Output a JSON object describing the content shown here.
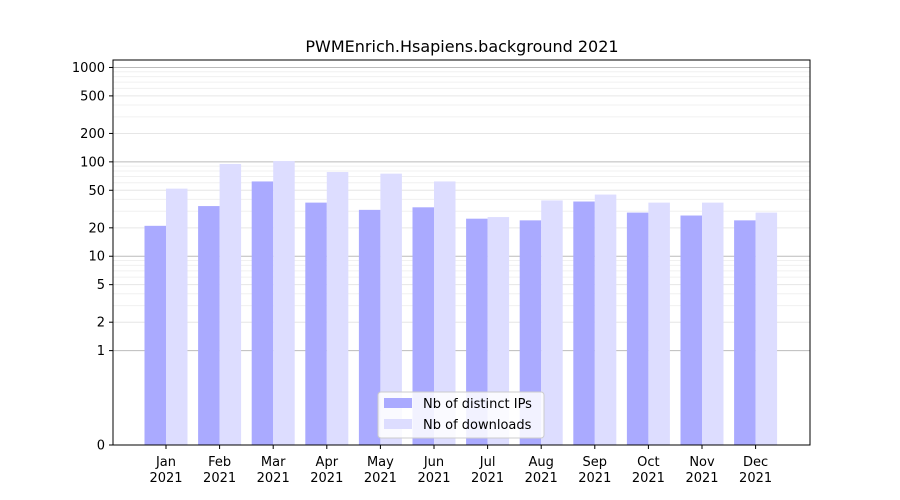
{
  "chart_data": {
    "type": "bar",
    "title": "PWMEnrich.Hsapiens.background 2021",
    "categories": [
      [
        "Jan",
        "2021"
      ],
      [
        "Feb",
        "2021"
      ],
      [
        "Mar",
        "2021"
      ],
      [
        "Apr",
        "2021"
      ],
      [
        "May",
        "2021"
      ],
      [
        "Jun",
        "2021"
      ],
      [
        "Jul",
        "2021"
      ],
      [
        "Aug",
        "2021"
      ],
      [
        "Sep",
        "2021"
      ],
      [
        "Oct",
        "2021"
      ],
      [
        "Nov",
        "2021"
      ],
      [
        "Dec",
        "2021"
      ]
    ],
    "series": [
      {
        "name": "Nb of distinct IPs",
        "color": "#aaaaff",
        "values": [
          21,
          34,
          62,
          37,
          31,
          33,
          25,
          24,
          38,
          29,
          27,
          24
        ]
      },
      {
        "name": "Nb of downloads",
        "color": "#ddddff",
        "values": [
          52,
          95,
          102,
          78,
          75,
          62,
          26,
          39,
          45,
          37,
          37,
          29
        ]
      }
    ],
    "y_scale": "symlog",
    "yticks": [
      0,
      1,
      2,
      5,
      10,
      20,
      50,
      100,
      200,
      500,
      1000
    ],
    "ylim": [
      0,
      1200
    ],
    "xlabel": "",
    "ylabel": "",
    "grid": true,
    "legend_position": "lower center"
  }
}
